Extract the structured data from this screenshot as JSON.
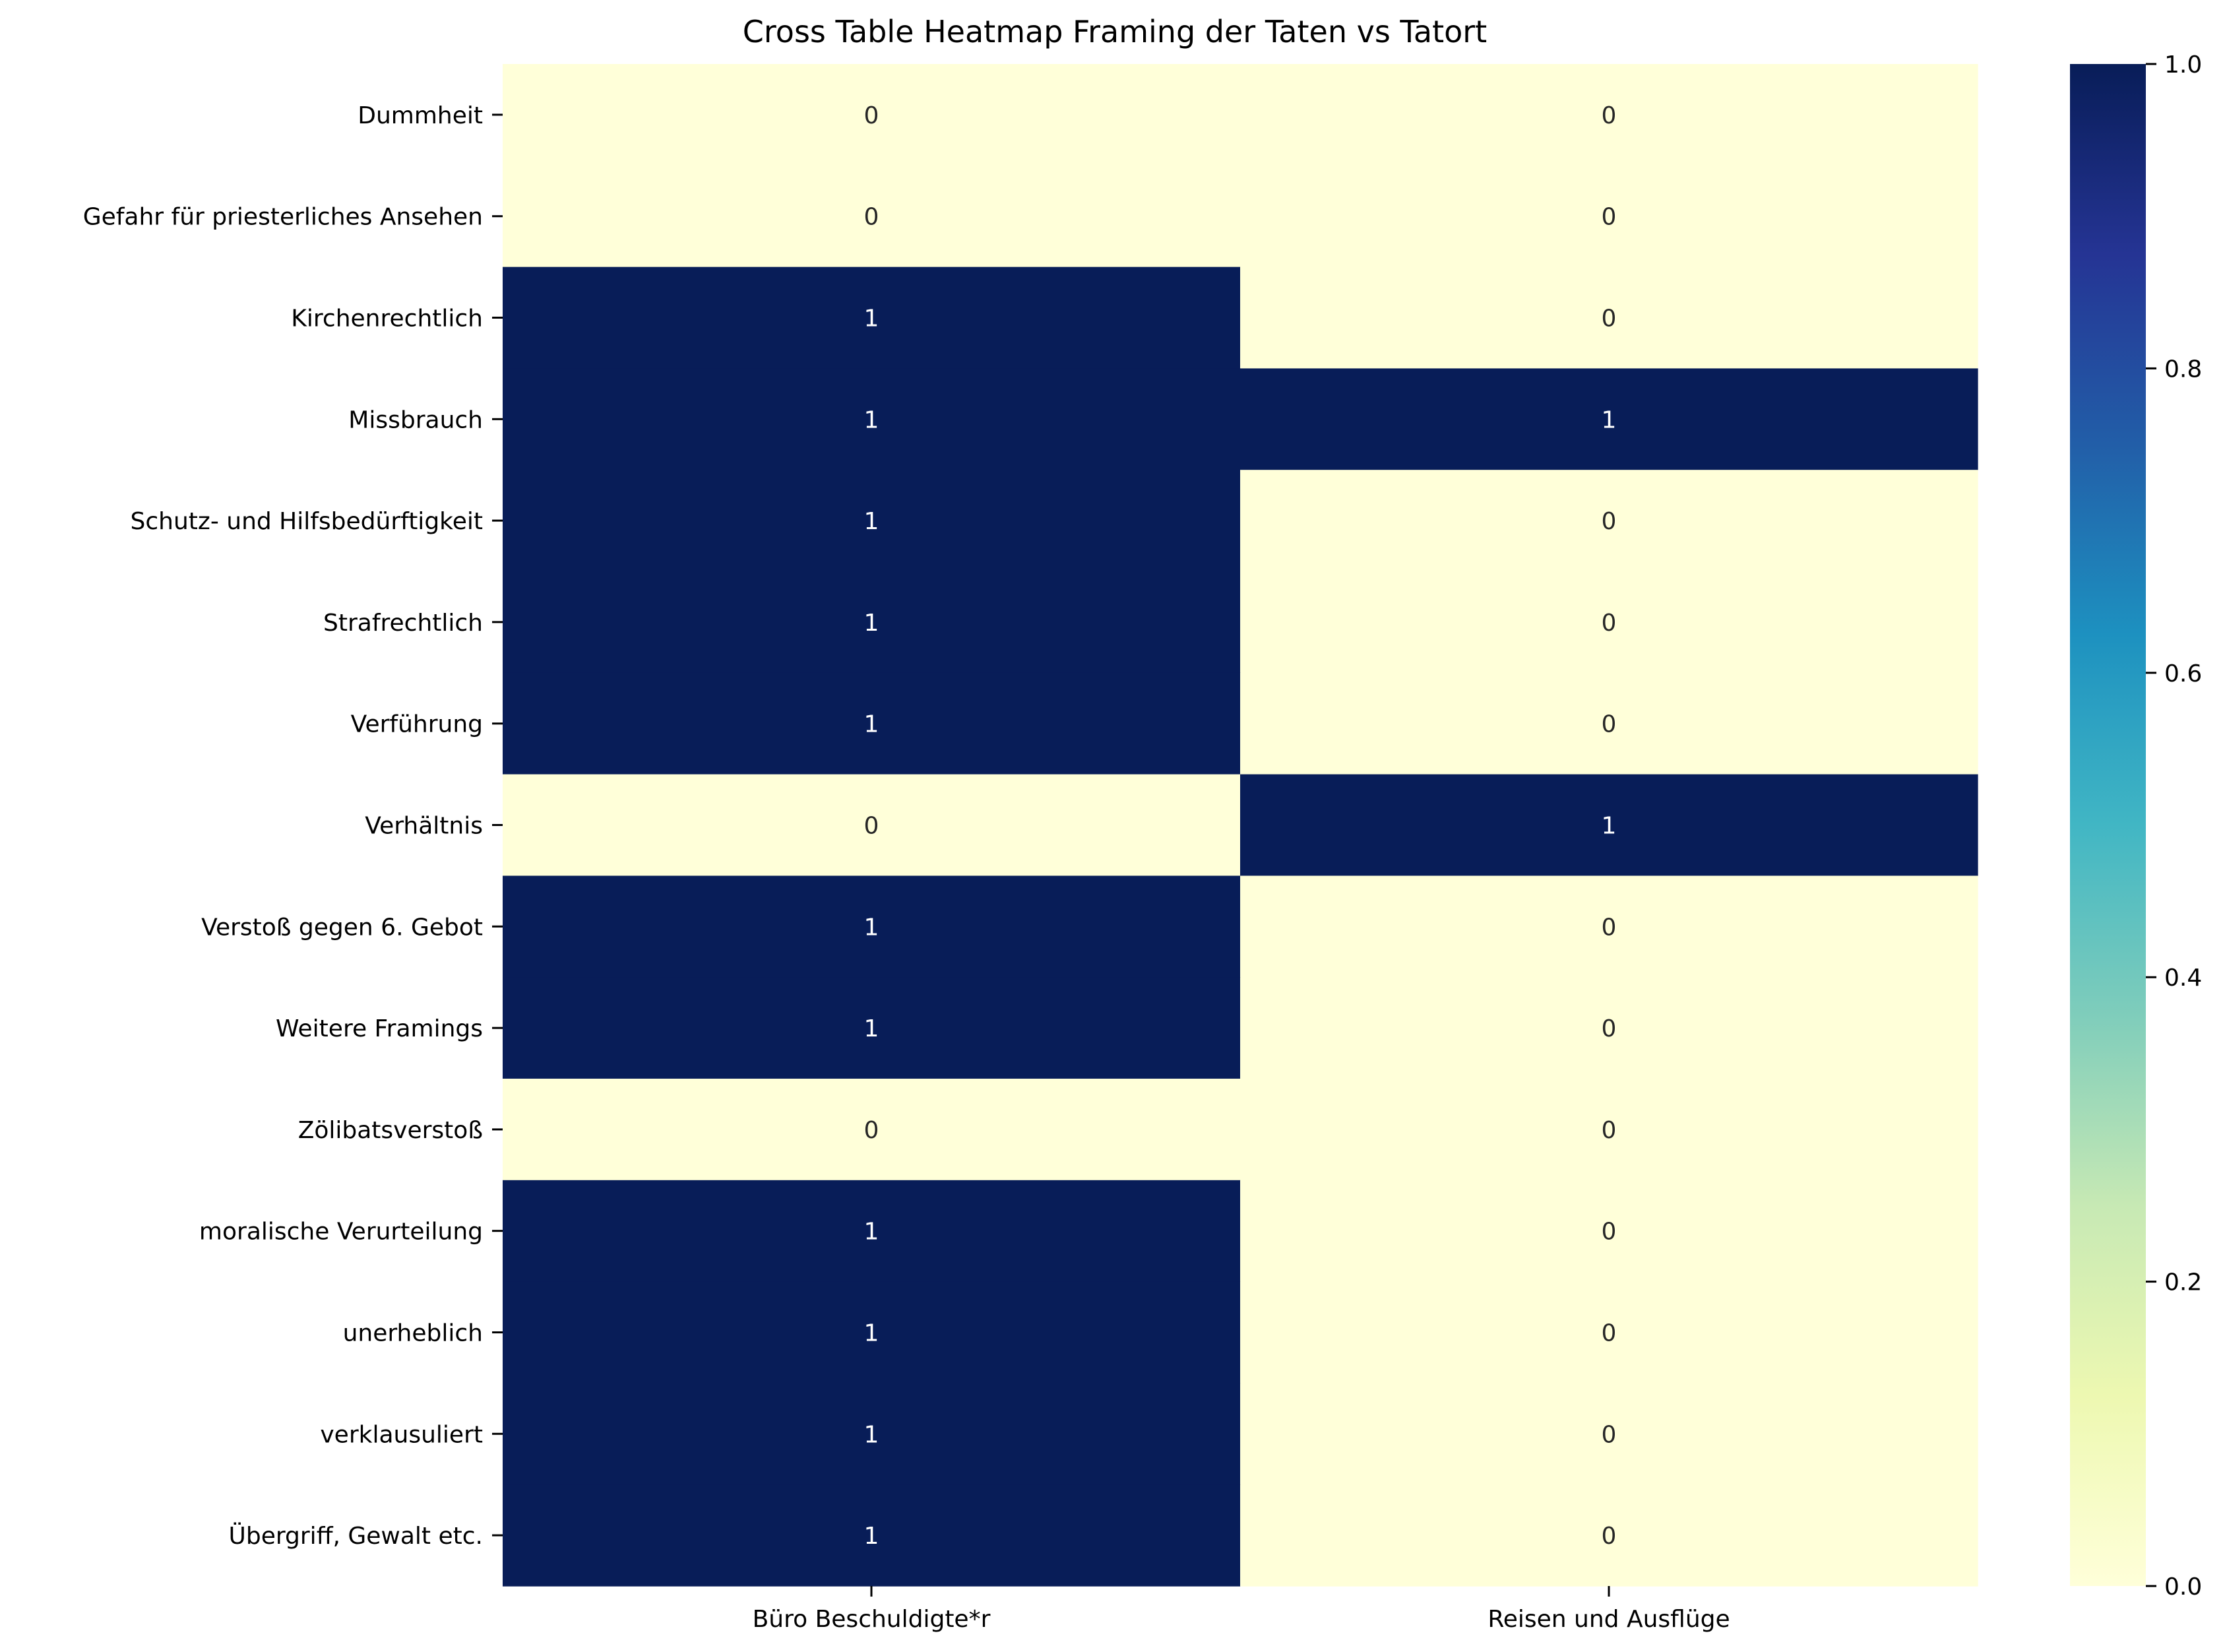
{
  "chart_data": {
    "type": "heatmap",
    "title": "Cross Table Heatmap Framing der Taten vs Tatort",
    "xlabel": "",
    "ylabel": "",
    "columns": [
      "Büro Beschuldigte*r",
      "Reisen und Ausflüge"
    ],
    "rows": [
      "Dummheit",
      "Gefahr für priesterliches Ansehen",
      "Kirchenrechtlich",
      "Missbrauch",
      "Schutz- und Hilfsbedürftigkeit",
      "Strafrechtlich",
      "Verführung",
      "Verhältnis",
      "Verstoß gegen 6. Gebot",
      "Weitere Framings",
      "Zölibatsverstoß",
      "moralische Verurteilung",
      "unerheblich",
      "verklausuliert",
      "Übergriff, Gewalt etc."
    ],
    "values": [
      [
        0,
        0
      ],
      [
        0,
        0
      ],
      [
        1,
        0
      ],
      [
        1,
        1
      ],
      [
        1,
        0
      ],
      [
        1,
        0
      ],
      [
        1,
        0
      ],
      [
        0,
        1
      ],
      [
        1,
        0
      ],
      [
        1,
        0
      ],
      [
        0,
        0
      ],
      [
        1,
        0
      ],
      [
        1,
        0
      ],
      [
        1,
        0
      ],
      [
        1,
        0
      ]
    ],
    "colorbar": {
      "min": 0.0,
      "max": 1.0,
      "ticks": [
        "0.0",
        "0.2",
        "0.4",
        "0.6",
        "0.8",
        "1.0"
      ],
      "colormap": "YlGnBu",
      "stops": [
        "#ffffd9",
        "#edf8b1",
        "#c7e9b4",
        "#7fcdbb",
        "#41b6c4",
        "#1d91c0",
        "#225ea8",
        "#253494",
        "#081d58"
      ]
    },
    "annotation_colors": {
      "low": "#262626",
      "high": "#ffffff"
    }
  }
}
